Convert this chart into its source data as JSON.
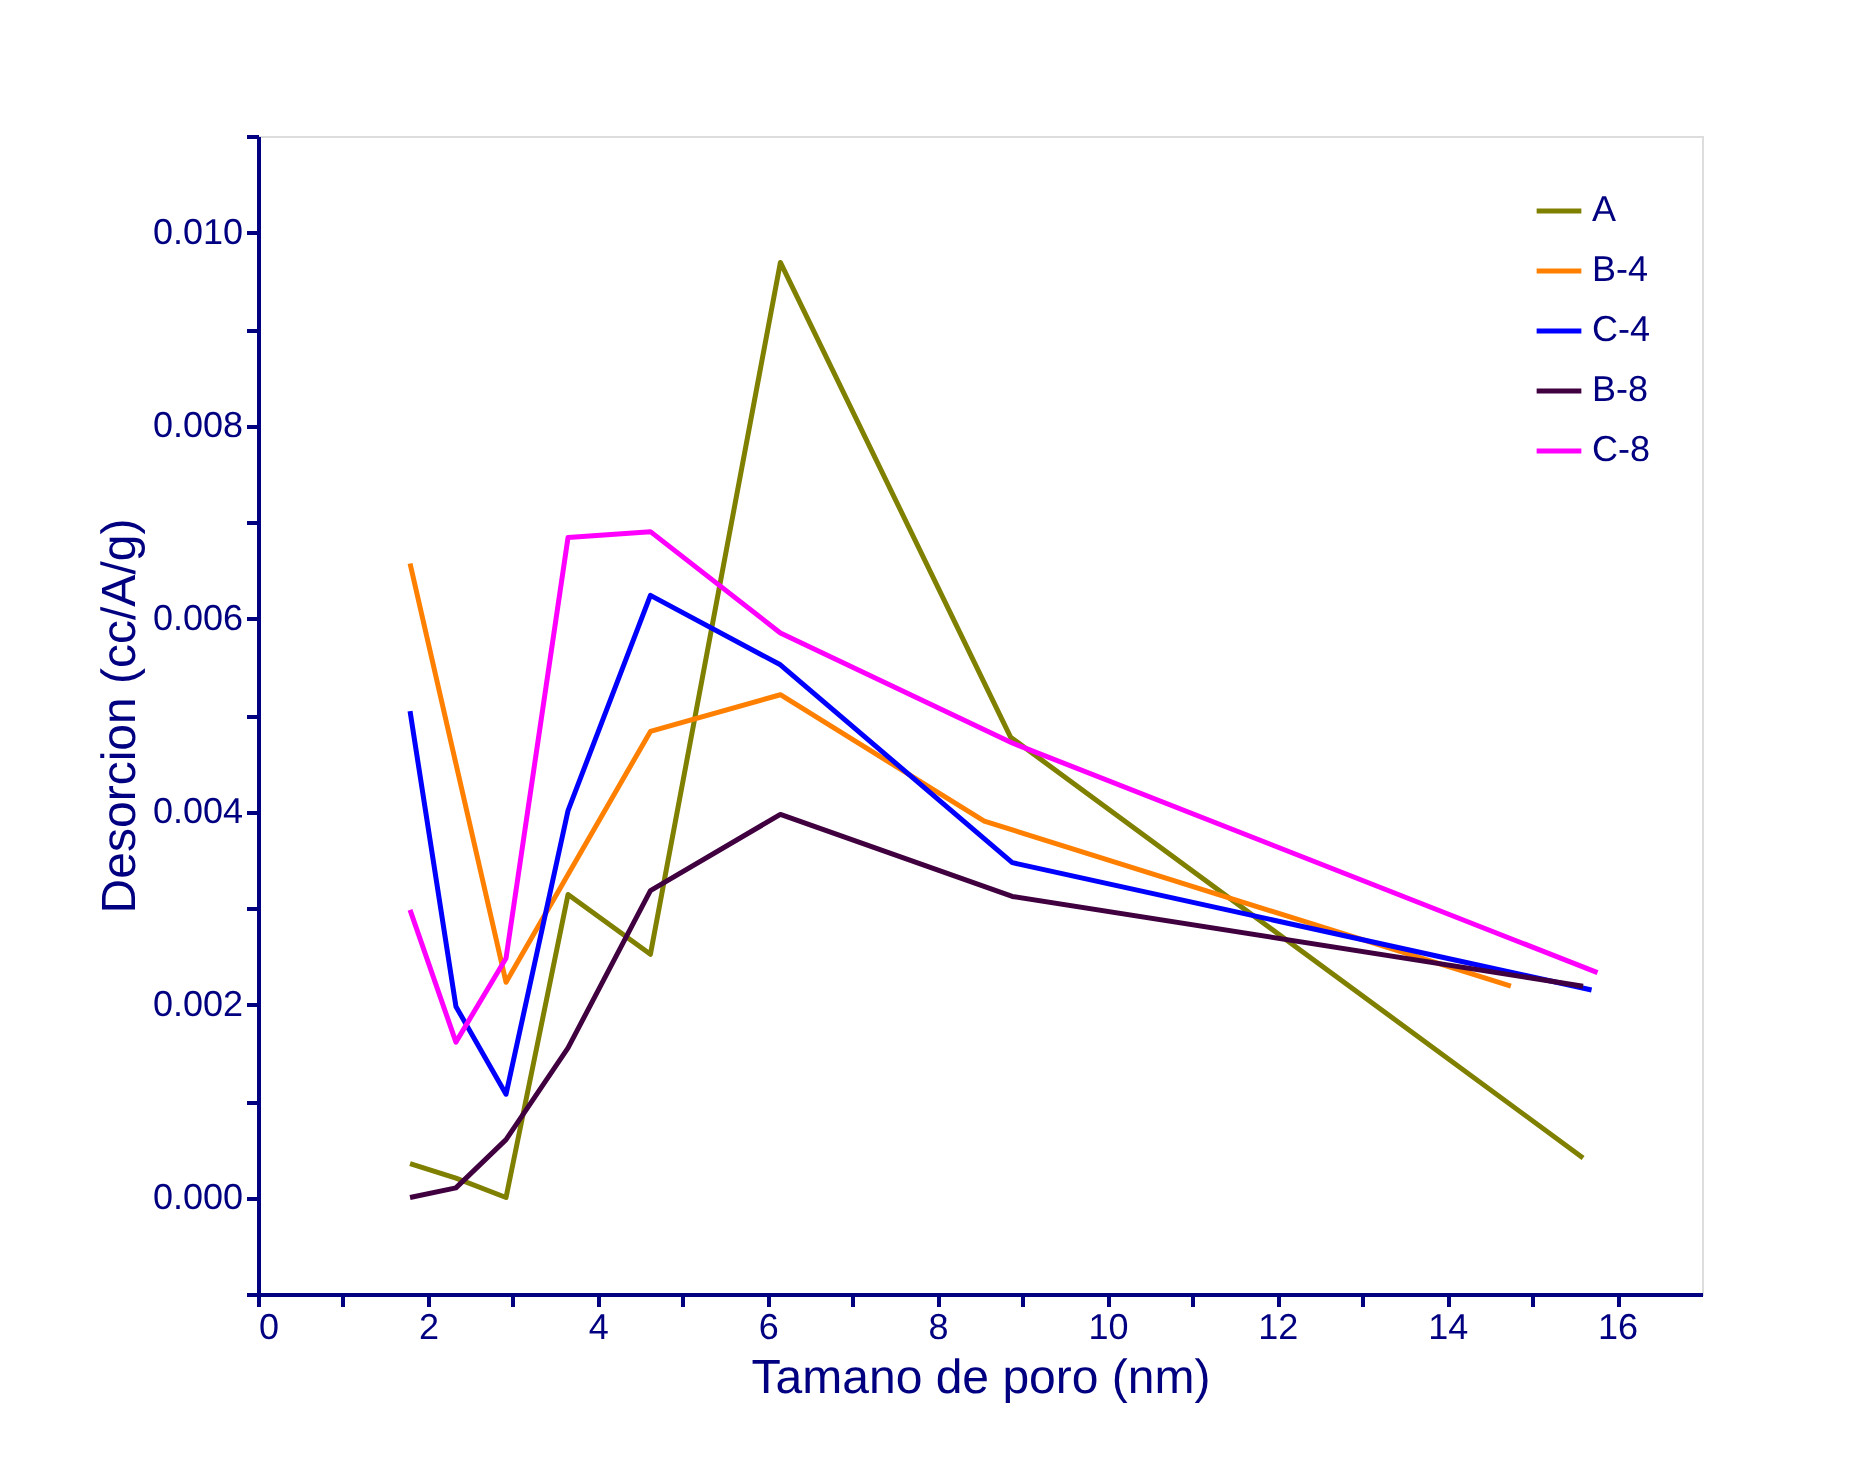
{
  "chart_data": {
    "type": "line",
    "xlabel": "Tamano de poro (nm)",
    "ylabel": "Desorcion (cc/A/g)",
    "xlim": [
      0,
      17
    ],
    "ylim": [
      -0.001,
      0.011
    ],
    "xticks": [
      0,
      {
        "value": 1,
        "label": null
      },
      2,
      {
        "value": 3,
        "label": null
      },
      4,
      {
        "value": 5,
        "label": null
      },
      6,
      {
        "value": 7,
        "label": null
      },
      8,
      {
        "value": 9,
        "label": null
      },
      10,
      {
        "value": 11,
        "label": null
      },
      12,
      {
        "value": 13,
        "label": null
      },
      14,
      {
        "value": 15,
        "label": null
      },
      16
    ],
    "yticks": [
      {
        "value": -0.001,
        "label": null
      },
      {
        "value": 0,
        "label": "0.000"
      },
      {
        "value": 0.001,
        "label": null
      },
      {
        "value": 0.002,
        "label": "0.002"
      },
      {
        "value": 0.003,
        "label": null
      },
      {
        "value": 0.004,
        "label": "0.004"
      },
      {
        "value": 0.005,
        "label": null
      },
      {
        "value": 0.006,
        "label": "0.006"
      },
      {
        "value": 0.007,
        "label": null
      },
      {
        "value": 0.008,
        "label": "0.008"
      },
      {
        "value": 0.009,
        "label": null
      },
      {
        "value": 0.01,
        "label": "0.010"
      },
      {
        "value": 0.011,
        "label": null
      }
    ],
    "grid": false,
    "legend": "top right",
    "marker": "none",
    "line_style": "solid",
    "series": [
      {
        "name": "A",
        "color": "#808000",
        "x": [
          1.79,
          2.33,
          2.92,
          3.65,
          4.62,
          6.15,
          8.86,
          15.6
        ],
        "values": [
          0.00035,
          0.0002,
          0.0,
          0.00314,
          0.00252,
          0.00969,
          0.00477,
          0.00041
        ]
      },
      {
        "name": "B-4",
        "color": "#ff8000",
        "x": [
          1.79,
          2.92,
          4.62,
          6.15,
          8.55,
          14.75
        ],
        "values": [
          0.00657,
          0.00223,
          0.00483,
          0.00521,
          0.0039,
          0.00219
        ]
      },
      {
        "name": "C-4",
        "color": "#0000ff",
        "x": [
          1.79,
          2.33,
          2.92,
          3.65,
          4.62,
          6.15,
          8.88,
          15.7
        ],
        "values": [
          0.00504,
          0.00198,
          0.00107,
          0.00401,
          0.00624,
          0.00552,
          0.00347,
          0.00215
        ]
      },
      {
        "name": "B-8",
        "color": "#400040",
        "x": [
          1.79,
          2.33,
          2.92,
          3.65,
          4.62,
          6.15,
          8.88,
          15.6
        ],
        "values": [
          0.0,
          0.0001,
          0.0006,
          0.00155,
          0.00318,
          0.00397,
          0.00312,
          0.00219
        ]
      },
      {
        "name": "C-8",
        "color": "#ff00ff",
        "x": [
          1.79,
          2.33,
          2.92,
          3.65,
          4.62,
          6.15,
          8.88,
          15.77
        ],
        "values": [
          0.00298,
          0.00161,
          0.00248,
          0.00684,
          0.0069,
          0.00585,
          0.00471,
          0.00233
        ]
      }
    ]
  }
}
